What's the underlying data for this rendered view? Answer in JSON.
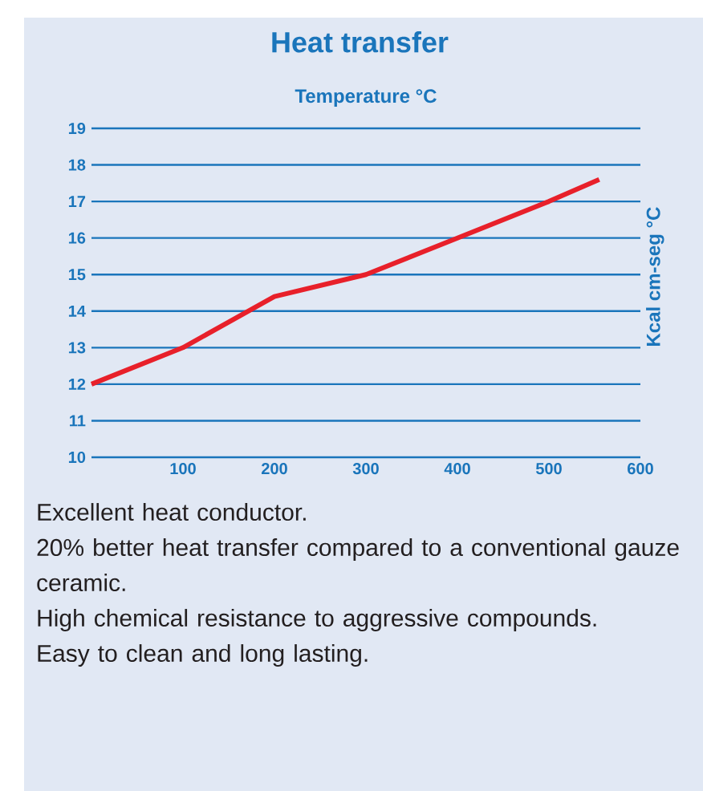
{
  "chart_data": {
    "type": "line",
    "title": "Heat transfer",
    "xlabel": "Temperature °C",
    "ylabel": "Kcal cm-seg °C",
    "x": [
      0,
      100,
      200,
      300,
      400,
      500,
      555
    ],
    "series": [
      {
        "color": "#e8202a",
        "values": [
          12,
          13,
          14.4,
          15,
          16,
          17,
          17.6
        ]
      }
    ],
    "xlim": [
      0,
      600
    ],
    "ylim": [
      10,
      19
    ],
    "xticks": [
      100,
      200,
      300,
      400,
      500,
      600
    ],
    "yticks": [
      10,
      11,
      12,
      13,
      14,
      15,
      16,
      17,
      18,
      19
    ],
    "grid": "y",
    "marker": "none",
    "line_style": "solid",
    "annotations": [
      "Excellent heat conductor.",
      "20% better heat transfer compared to a conventional gauze ceramic.",
      "High chemical resistance to aggressive compounds.",
      "Easy to clean and long lasting."
    ]
  }
}
